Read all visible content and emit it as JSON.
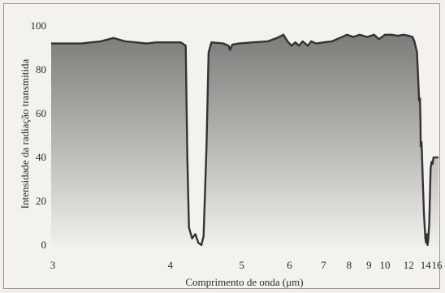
{
  "chart_data": {
    "type": "area",
    "title": "",
    "xlabel": "Comprimento de onda (μm)",
    "ylabel": "Intensidade da radiação transmitida",
    "x_ticks": [
      3,
      4,
      5,
      6,
      7,
      8,
      9,
      10,
      12,
      14,
      16
    ],
    "y_ticks": [
      0,
      20,
      40,
      60,
      80,
      100
    ],
    "xlim": [
      3,
      16
    ],
    "ylim": [
      -3,
      100
    ],
    "grid": false,
    "fill_gradient": [
      "#7e7c78",
      "#f3f2ee"
    ],
    "line_color": "#333333",
    "series": [
      {
        "points": [
          [
            3.0,
            92
          ],
          [
            3.2,
            92
          ],
          [
            3.35,
            93
          ],
          [
            3.45,
            94.5
          ],
          [
            3.55,
            93
          ],
          [
            3.65,
            92.5
          ],
          [
            3.75,
            92
          ],
          [
            3.85,
            92.5
          ],
          [
            4.0,
            92.5
          ],
          [
            4.12,
            92.5
          ],
          [
            4.18,
            91
          ],
          [
            4.2,
            40
          ],
          [
            4.22,
            8
          ],
          [
            4.26,
            3
          ],
          [
            4.3,
            5
          ],
          [
            4.34,
            1
          ],
          [
            4.38,
            0
          ],
          [
            4.41,
            4
          ],
          [
            4.45,
            45
          ],
          [
            4.48,
            88
          ],
          [
            4.52,
            92.5
          ],
          [
            4.7,
            92
          ],
          [
            4.78,
            91
          ],
          [
            4.8,
            89
          ],
          [
            4.84,
            91.5
          ],
          [
            4.95,
            92
          ],
          [
            5.2,
            92.5
          ],
          [
            5.5,
            93
          ],
          [
            5.7,
            94.5
          ],
          [
            5.85,
            96
          ],
          [
            5.95,
            93
          ],
          [
            6.05,
            91
          ],
          [
            6.15,
            92.5
          ],
          [
            6.25,
            91
          ],
          [
            6.35,
            93
          ],
          [
            6.5,
            91
          ],
          [
            6.6,
            93
          ],
          [
            6.75,
            92
          ],
          [
            7.0,
            92.5
          ],
          [
            7.3,
            93
          ],
          [
            7.6,
            94.5
          ],
          [
            7.9,
            96
          ],
          [
            8.2,
            95
          ],
          [
            8.5,
            96
          ],
          [
            8.9,
            95
          ],
          [
            9.3,
            96
          ],
          [
            9.6,
            94
          ],
          [
            10.0,
            96
          ],
          [
            10.5,
            96
          ],
          [
            11.0,
            95.5
          ],
          [
            11.5,
            96
          ],
          [
            12.0,
            95.5
          ],
          [
            12.4,
            95
          ],
          [
            12.6,
            93
          ],
          [
            12.9,
            88
          ],
          [
            13.05,
            75
          ],
          [
            13.15,
            66
          ],
          [
            13.25,
            67
          ],
          [
            13.3,
            58
          ],
          [
            13.35,
            45
          ],
          [
            13.45,
            47
          ],
          [
            13.5,
            42
          ],
          [
            13.6,
            30
          ],
          [
            13.75,
            15
          ],
          [
            13.95,
            3
          ],
          [
            14.05,
            1
          ],
          [
            14.15,
            5
          ],
          [
            14.25,
            0
          ],
          [
            14.35,
            2
          ],
          [
            14.5,
            10
          ],
          [
            14.7,
            35
          ],
          [
            14.85,
            38
          ],
          [
            15.0,
            37
          ],
          [
            15.15,
            40
          ],
          [
            15.5,
            40
          ],
          [
            16.0,
            40
          ]
        ]
      }
    ]
  }
}
